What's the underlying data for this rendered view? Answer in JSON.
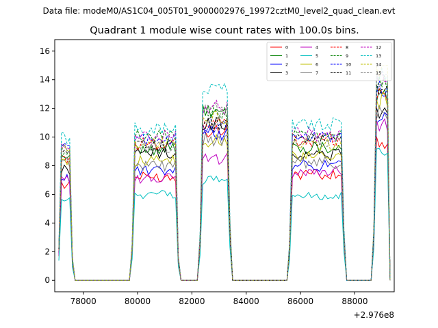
{
  "chart_data": {
    "type": "line",
    "suptitle": "Data file: modeM0/AS1C04_005T01_9000002976_19972cztM0_level2_quad_clean.evt",
    "title": "Quadrant 1 module wise count rates with 100.0s bins.",
    "xlabel": "",
    "ylabel": "",
    "x_offset_label": "+2.976e8",
    "xlim": [
      76950,
      89450
    ],
    "ylim": [
      -0.8,
      16.8
    ],
    "x_ticks": [
      78000,
      80000,
      82000,
      84000,
      86000,
      88000
    ],
    "x_tick_labels": [
      "78000",
      "80000",
      "82000",
      "84000",
      "86000",
      "88000"
    ],
    "y_ticks": [
      0,
      2,
      4,
      6,
      8,
      10,
      12,
      14,
      16
    ],
    "y_tick_labels": [
      "0",
      "2",
      "4",
      "6",
      "8",
      "10",
      "12",
      "14",
      "16"
    ],
    "grid": false,
    "legend_position": "top-right",
    "legend_columns": 4,
    "time_bin_s": 100,
    "on_segments": [
      {
        "start": 77150,
        "end": 77500,
        "ramp_end": 77650
      },
      {
        "start": 79850,
        "end": 81400,
        "ramp_end": 81550
      },
      {
        "start": 82400,
        "end": 83350,
        "ramp_end": 83500
      },
      {
        "start": 85700,
        "end": 87550,
        "ramp_end": 87700
      },
      {
        "start": 88750,
        "end": 89250,
        "ramp_end": 89300
      }
    ],
    "series": [
      {
        "name": "0",
        "color": "#ff0000",
        "dashed": false,
        "levels": [
          6.7,
          7.2,
          10.5,
          7.4,
          9.6
        ]
      },
      {
        "name": "1",
        "color": "#008000",
        "dashed": false,
        "levels": [
          8.7,
          9.2,
          11.8,
          9.3,
          12.8
        ]
      },
      {
        "name": "2",
        "color": "#0000ff",
        "dashed": false,
        "levels": [
          7.1,
          7.6,
          10.3,
          8.0,
          11.2
        ]
      },
      {
        "name": "3",
        "color": "#000000",
        "dashed": false,
        "levels": [
          7.7,
          8.9,
          11.0,
          8.8,
          11.8
        ]
      },
      {
        "name": "4",
        "color": "#bf00bf",
        "dashed": false,
        "levels": [
          7.0,
          7.1,
          8.5,
          7.6,
          10.8
        ]
      },
      {
        "name": "5",
        "color": "#00bfbf",
        "dashed": false,
        "levels": [
          5.5,
          6.0,
          7.0,
          5.9,
          8.8
        ]
      },
      {
        "name": "6",
        "color": "#bfbf00",
        "dashed": false,
        "levels": [
          8.4,
          8.3,
          9.7,
          8.6,
          12.5
        ]
      },
      {
        "name": "7",
        "color": "#808080",
        "dashed": false,
        "levels": [
          8.3,
          8.0,
          9.8,
          8.2,
          11.6
        ]
      },
      {
        "name": "8",
        "color": "#ff0000",
        "dashed": true,
        "levels": [
          8.6,
          9.5,
          11.0,
          9.8,
          13.0
        ]
      },
      {
        "name": "9",
        "color": "#008000",
        "dashed": true,
        "levels": [
          9.0,
          10.0,
          11.6,
          10.1,
          13.6
        ]
      },
      {
        "name": "10",
        "color": "#0000ff",
        "dashed": true,
        "levels": [
          9.2,
          9.8,
          10.8,
          9.9,
          13.3
        ]
      },
      {
        "name": "11",
        "color": "#000000",
        "dashed": true,
        "levels": [
          8.8,
          9.4,
          10.9,
          9.8,
          13.4
        ]
      },
      {
        "name": "12",
        "color": "#bf00bf",
        "dashed": true,
        "levels": [
          9.6,
          10.0,
          12.0,
          10.2,
          13.9
        ]
      },
      {
        "name": "13",
        "color": "#00bfbf",
        "dashed": true,
        "levels": [
          10.0,
          10.6,
          13.3,
          10.9,
          14.3
        ]
      },
      {
        "name": "14",
        "color": "#bfbf00",
        "dashed": true,
        "levels": [
          9.3,
          9.6,
          11.3,
          9.5,
          14.6
        ]
      },
      {
        "name": "15",
        "color": "#808080",
        "dashed": true,
        "levels": [
          9.1,
          9.3,
          11.8,
          9.8,
          13.8
        ]
      }
    ]
  }
}
